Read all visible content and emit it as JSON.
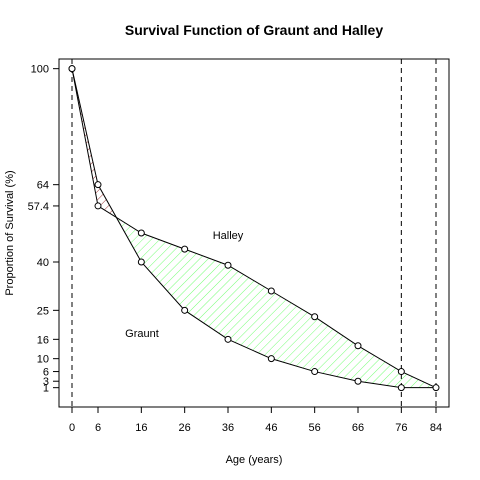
{
  "chart_data": {
    "type": "line",
    "title": "Survival Function of Graunt and Halley",
    "xlabel": "Age (years)",
    "ylabel": "Proportion of Survival (%)",
    "xlim": [
      -3,
      87
    ],
    "ylim": [
      -5,
      103
    ],
    "x_ticks": [
      0,
      6,
      16,
      26,
      36,
      46,
      56,
      66,
      76,
      84
    ],
    "y_ticks": [
      1,
      3,
      6,
      10,
      16,
      25,
      40,
      57.4,
      64,
      100
    ],
    "y_tick_labels": [
      "1",
      "3",
      "6",
      "10",
      "16",
      "25",
      "40",
      "57.4",
      "64",
      "100"
    ],
    "vlines": [
      0,
      76,
      84
    ],
    "series": [
      {
        "name": "Graunt",
        "x": [
          0,
          6,
          16,
          26,
          36,
          46,
          56,
          66,
          76
        ],
        "y": [
          100,
          64,
          40,
          25,
          16,
          10,
          6,
          3,
          1
        ]
      },
      {
        "name": "Halley",
        "x": [
          0,
          6,
          16,
          26,
          36,
          46,
          56,
          66,
          76,
          84
        ],
        "y": [
          100,
          57.4,
          49,
          44,
          39,
          31,
          23,
          14,
          6,
          1
        ]
      }
    ],
    "fill_colors": {
      "graunt_higher": "#8b1a1a",
      "halley_higher": "#66ff66"
    },
    "grid": false,
    "legend": "none"
  }
}
